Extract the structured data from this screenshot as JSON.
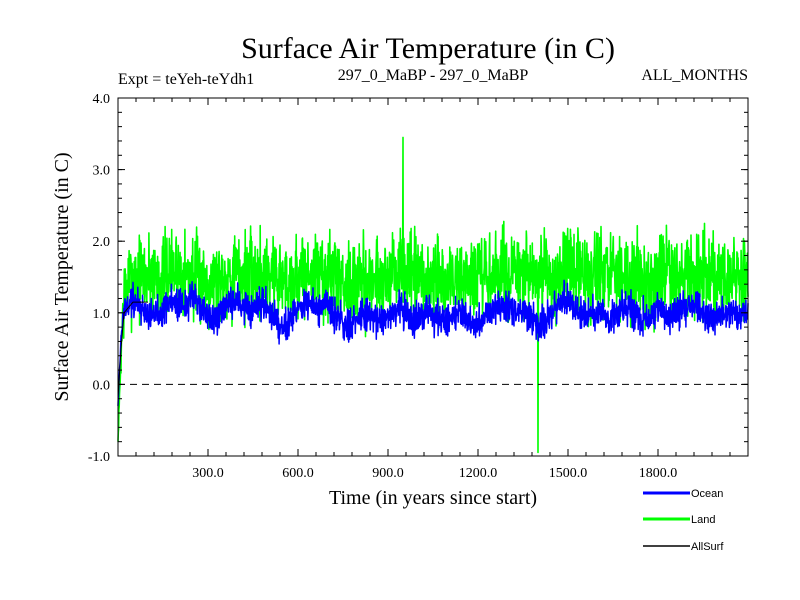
{
  "chart_data": {
    "type": "line",
    "title": "Surface Air Temperature (in C)",
    "subtitle_left": "Expt = teYeh-teYdh1",
    "subtitle_center": "297_0_MaBP - 297_0_MaBP",
    "subtitle_right": "ALL_MONTHS",
    "xlabel": "Time (in years since start)",
    "ylabel": "Surface Air Temperature (in C)",
    "xlim": [
      0,
      2100
    ],
    "ylim": [
      -1.0,
      4.0
    ],
    "x_ticks": [
      300,
      600,
      900,
      1200,
      1500,
      1800
    ],
    "x_tick_labels": [
      "300.0",
      "600.0",
      "900.0",
      "1200.0",
      "1500.0",
      "1800.0"
    ],
    "y_ticks": [
      -1,
      0,
      1,
      2,
      3,
      4
    ],
    "y_tick_labels": [
      "-1.0",
      "0.0",
      "1.0",
      "2.0",
      "3.0",
      "4.0"
    ],
    "reference_line": {
      "y": 0.0,
      "style": "dashed"
    },
    "series": [
      {
        "name": "Land",
        "color": "#00ff00",
        "band_summary": {
          "start": -0.8,
          "mean": 1.5,
          "typical_min": 0.5,
          "typical_max": 2.5,
          "max_peak": 3.45,
          "max_peak_x": 950,
          "min_trough": -0.95,
          "min_trough_x": 1400
        },
        "x": [
          0,
          5,
          10,
          15,
          20,
          30,
          50,
          100,
          150,
          200,
          250,
          300,
          350,
          400,
          450,
          500,
          550,
          600,
          650,
          700,
          750,
          800,
          850,
          900,
          950,
          1000,
          1050,
          1100,
          1150,
          1200,
          1250,
          1300,
          1350,
          1400,
          1450,
          1500,
          1550,
          1600,
          1650,
          1700,
          1750,
          1800,
          1850,
          1900,
          1950,
          2000,
          2050,
          2100
        ],
        "values": [
          -0.8,
          -0.2,
          0.4,
          0.9,
          1.2,
          1.4,
          1.5,
          1.55,
          1.5,
          1.6,
          1.5,
          1.45,
          1.5,
          1.55,
          1.5,
          1.6,
          1.45,
          1.5,
          1.55,
          1.5,
          1.45,
          1.4,
          1.5,
          1.5,
          1.6,
          1.45,
          1.4,
          1.45,
          1.5,
          1.45,
          1.5,
          1.55,
          1.5,
          1.45,
          1.5,
          1.6,
          1.5,
          1.55,
          1.5,
          1.5,
          1.45,
          1.5,
          1.55,
          1.5,
          1.5,
          1.45,
          1.5,
          1.5
        ]
      },
      {
        "name": "Ocean",
        "color": "#0000ff",
        "band_summary": {
          "start": -0.3,
          "mean": 1.0,
          "typical_min": 0.6,
          "typical_max": 1.5
        },
        "x": [
          0,
          5,
          10,
          15,
          20,
          30,
          50,
          100,
          150,
          200,
          250,
          300,
          350,
          400,
          450,
          500,
          550,
          600,
          650,
          700,
          750,
          800,
          850,
          900,
          950,
          1000,
          1050,
          1100,
          1150,
          1200,
          1250,
          1300,
          1350,
          1400,
          1450,
          1500,
          1550,
          1600,
          1650,
          1700,
          1750,
          1800,
          1850,
          1900,
          1950,
          2000,
          2050,
          2100
        ],
        "values": [
          -0.3,
          0.2,
          0.6,
          0.85,
          1.0,
          1.05,
          1.1,
          1.1,
          1.05,
          1.1,
          1.15,
          1.0,
          1.05,
          1.1,
          1.0,
          1.05,
          0.95,
          1.0,
          1.1,
          1.0,
          0.95,
          0.85,
          0.9,
          0.95,
          1.1,
          0.95,
          0.9,
          0.95,
          1.0,
          0.95,
          1.0,
          1.05,
          1.0,
          0.95,
          1.0,
          1.1,
          1.0,
          1.05,
          1.0,
          1.0,
          0.95,
          1.0,
          1.05,
          1.0,
          1.0,
          0.95,
          1.05,
          1.0
        ]
      },
      {
        "name": "AllSurf",
        "color": "#000000",
        "band_summary": {
          "start": -0.2,
          "mean": 1.1
        },
        "x": [
          0,
          10,
          20,
          50,
          100
        ],
        "values": [
          -0.2,
          0.5,
          1.0,
          1.15,
          1.15
        ]
      }
    ],
    "legend": {
      "placement": "bottom-right",
      "entries": [
        "Ocean",
        "Land",
        "AllSurf"
      ]
    }
  }
}
